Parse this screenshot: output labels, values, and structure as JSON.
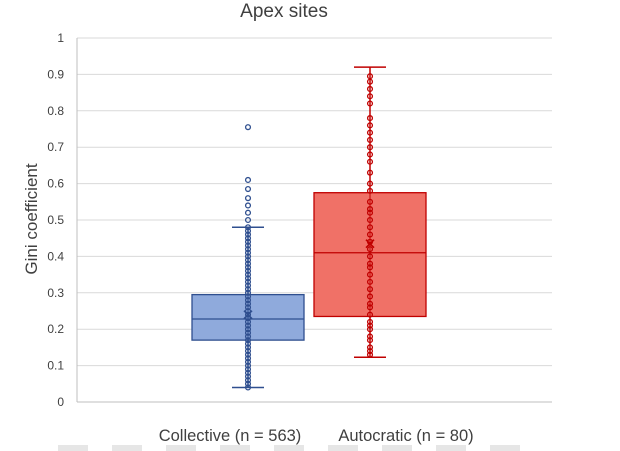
{
  "chart_data": {
    "type": "box",
    "title": "Apex sites",
    "ylabel": "Gini coefficient",
    "xlabel": "",
    "ylim": [
      0,
      1
    ],
    "yticks": [
      "0",
      "0.1",
      "0.2",
      "0.3",
      "0.4",
      "0.5",
      "0.6",
      "0.7",
      "0.8",
      "0.9",
      "1"
    ],
    "grid": true,
    "series": [
      {
        "name": "Collective (n = 563)",
        "color": "#8faadc",
        "edge": "#2f4f8f",
        "whisker_low": 0.04,
        "q1": 0.17,
        "median": 0.228,
        "q3": 0.295,
        "whisker_high": 0.48,
        "mean": 0.24,
        "points": [
          0.04,
          0.05,
          0.06,
          0.07,
          0.08,
          0.09,
          0.1,
          0.11,
          0.12,
          0.13,
          0.14,
          0.15,
          0.16,
          0.17,
          0.18,
          0.19,
          0.2,
          0.21,
          0.22,
          0.23,
          0.24,
          0.25,
          0.26,
          0.27,
          0.28,
          0.29,
          0.3,
          0.31,
          0.32,
          0.33,
          0.34,
          0.35,
          0.36,
          0.37,
          0.38,
          0.39,
          0.4,
          0.41,
          0.42,
          0.43,
          0.44,
          0.45,
          0.46,
          0.47,
          0.48,
          0.5,
          0.52,
          0.54,
          0.56,
          0.585,
          0.61,
          0.755
        ]
      },
      {
        "name": "Autocratic (n = 80)",
        "color": "#f07167",
        "edge": "#c00000",
        "whisker_low": 0.123,
        "q1": 0.235,
        "median": 0.41,
        "q3": 0.575,
        "whisker_high": 0.92,
        "mean": 0.435,
        "points": [
          0.13,
          0.14,
          0.15,
          0.17,
          0.18,
          0.2,
          0.21,
          0.22,
          0.24,
          0.26,
          0.27,
          0.29,
          0.31,
          0.33,
          0.35,
          0.37,
          0.38,
          0.4,
          0.42,
          0.44,
          0.46,
          0.48,
          0.5,
          0.52,
          0.53,
          0.55,
          0.58,
          0.6,
          0.63,
          0.66,
          0.68,
          0.7,
          0.72,
          0.74,
          0.76,
          0.78,
          0.82,
          0.84,
          0.86,
          0.88,
          0.895
        ]
      }
    ]
  }
}
